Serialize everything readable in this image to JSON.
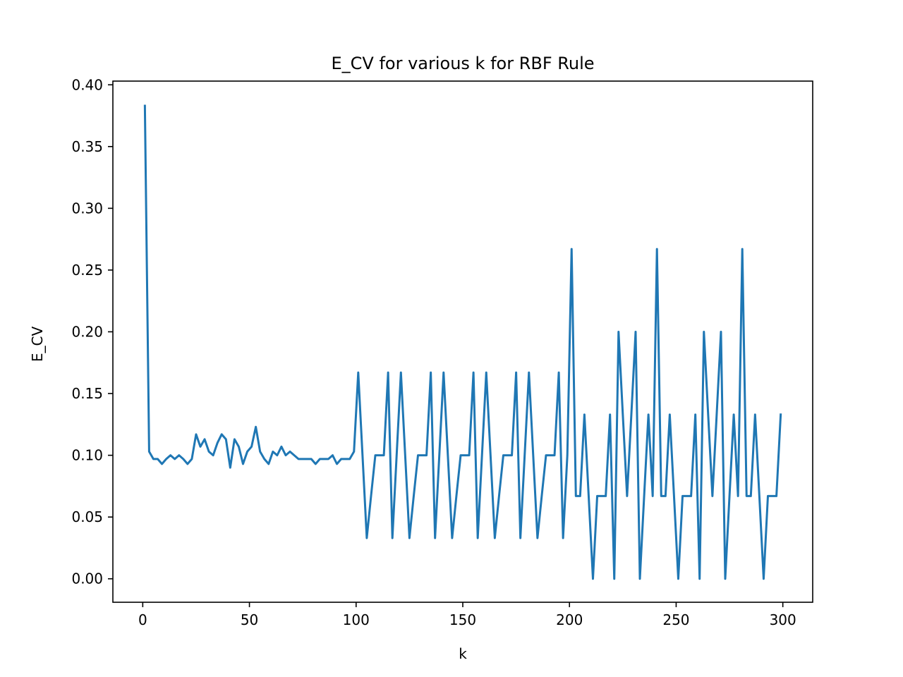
{
  "chart_data": {
    "type": "line",
    "title": "E_CV for various k for RBF Rule",
    "xlabel": "k",
    "ylabel": "E_CV",
    "xlim": [
      -14,
      314
    ],
    "ylim": [
      -0.019,
      0.403
    ],
    "xticks": [
      0,
      50,
      100,
      150,
      200,
      250,
      300
    ],
    "xtick_labels": [
      "0",
      "50",
      "100",
      "150",
      "200",
      "250",
      "300"
    ],
    "yticks": [
      0.0,
      0.05,
      0.1,
      0.15,
      0.2,
      0.25,
      0.3,
      0.35,
      0.4
    ],
    "ytick_labels": [
      "0.00",
      "0.05",
      "0.10",
      "0.15",
      "0.20",
      "0.25",
      "0.30",
      "0.35",
      "0.40"
    ],
    "grid": false,
    "series": [
      {
        "color": "#1f77b4",
        "x": [
          1,
          3,
          5,
          7,
          9,
          11,
          13,
          15,
          17,
          19,
          21,
          23,
          25,
          27,
          29,
          31,
          33,
          35,
          37,
          39,
          41,
          43,
          45,
          47,
          49,
          51,
          53,
          55,
          57,
          59,
          61,
          63,
          65,
          67,
          69,
          71,
          73,
          75,
          77,
          79,
          81,
          83,
          85,
          87,
          89,
          91,
          93,
          95,
          97,
          99,
          101,
          103,
          105,
          107,
          109,
          111,
          113,
          115,
          117,
          119,
          121,
          123,
          125,
          127,
          129,
          131,
          133,
          135,
          137,
          139,
          141,
          143,
          145,
          147,
          149,
          151,
          153,
          155,
          157,
          159,
          161,
          163,
          165,
          167,
          169,
          171,
          173,
          175,
          177,
          179,
          181,
          183,
          185,
          187,
          189,
          191,
          193,
          195,
          197,
          199,
          201,
          203,
          205,
          207,
          209,
          211,
          213,
          215,
          217,
          219,
          221,
          223,
          225,
          227,
          229,
          231,
          233,
          235,
          237,
          239,
          241,
          243,
          245,
          247,
          249,
          251,
          253,
          255,
          257,
          259,
          261,
          263,
          265,
          267,
          269,
          271,
          273,
          275,
          277,
          279,
          281,
          283,
          285,
          287,
          289,
          291,
          293,
          295,
          297,
          299
        ],
        "y": [
          0.383,
          0.103,
          0.097,
          0.097,
          0.093,
          0.097,
          0.1,
          0.097,
          0.1,
          0.097,
          0.093,
          0.097,
          0.117,
          0.107,
          0.113,
          0.103,
          0.1,
          0.11,
          0.117,
          0.113,
          0.09,
          0.113,
          0.107,
          0.093,
          0.103,
          0.107,
          0.123,
          0.103,
          0.097,
          0.093,
          0.103,
          0.1,
          0.107,
          0.1,
          0.103,
          0.1,
          0.097,
          0.097,
          0.097,
          0.097,
          0.093,
          0.097,
          0.097,
          0.097,
          0.1,
          0.093,
          0.097,
          0.097,
          0.097,
          0.103,
          0.167,
          0.1,
          0.033,
          0.067,
          0.1,
          0.1,
          0.1,
          0.167,
          0.033,
          0.1,
          0.167,
          0.1,
          0.033,
          0.067,
          0.1,
          0.1,
          0.1,
          0.167,
          0.033,
          0.1,
          0.167,
          0.1,
          0.033,
          0.067,
          0.1,
          0.1,
          0.1,
          0.167,
          0.033,
          0.1,
          0.167,
          0.1,
          0.033,
          0.067,
          0.1,
          0.1,
          0.1,
          0.167,
          0.033,
          0.1,
          0.167,
          0.1,
          0.033,
          0.067,
          0.1,
          0.1,
          0.1,
          0.167,
          0.033,
          0.1,
          0.267,
          0.067,
          0.067,
          0.133,
          0.067,
          0.0,
          0.067,
          0.067,
          0.067,
          0.133,
          0.0,
          0.2,
          0.133,
          0.067,
          0.133,
          0.2,
          0.0,
          0.067,
          0.133,
          0.067,
          0.267,
          0.067,
          0.067,
          0.133,
          0.067,
          0.0,
          0.067,
          0.067,
          0.067,
          0.133,
          0.0,
          0.2,
          0.133,
          0.067,
          0.133,
          0.2,
          0.0,
          0.067,
          0.133,
          0.067,
          0.267,
          0.067,
          0.067,
          0.133,
          0.067,
          0.0,
          0.067,
          0.067,
          0.067,
          0.133
        ]
      }
    ]
  }
}
